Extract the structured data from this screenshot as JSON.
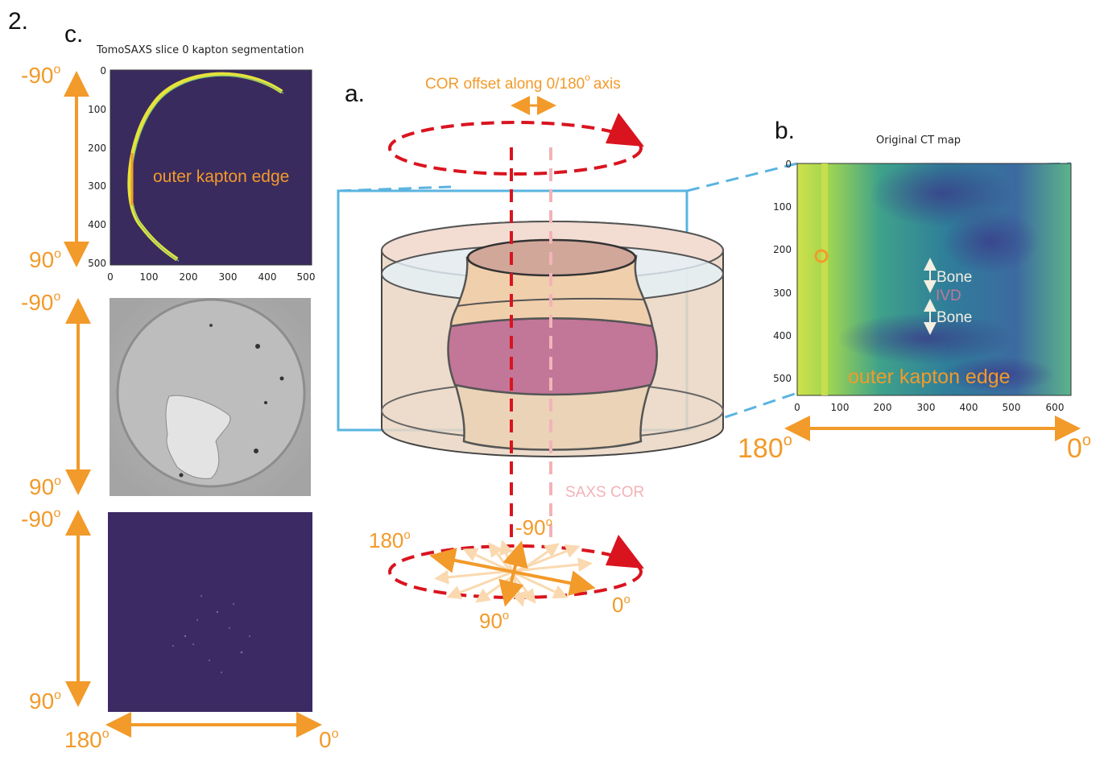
{
  "labels": {
    "figure_number": "2.",
    "panel_a": "a.",
    "panel_b": "b.",
    "panel_c": "c."
  },
  "panel_c": {
    "title": "TomoSAXS slice 0 kapton segmentation",
    "annotation": "outer kapton edge",
    "x_ticks": [
      "0",
      "100",
      "200",
      "300",
      "400",
      "500"
    ],
    "y_ticks": [
      "0",
      "100",
      "200",
      "300",
      "400",
      "500"
    ],
    "angle_top": "-90",
    "angle_bottom": "90",
    "angle_left": "180",
    "angle_right": "0",
    "degree": "o"
  },
  "panel_a": {
    "cor_offset_label": "COR offset along 0/180",
    "cor_offset_suffix": "axis",
    "saxs_cor_label": "SAXS COR",
    "angle_minus90": "-90",
    "angle_180": "180",
    "angle_90": "90",
    "angle_0": "0",
    "degree": "o"
  },
  "panel_b": {
    "title": "Original CT map",
    "x_ticks": [
      "0",
      "100",
      "200",
      "300",
      "400",
      "500",
      "600"
    ],
    "y_ticks": [
      "0",
      "100",
      "200",
      "300",
      "400",
      "500"
    ],
    "bone_top": "Bone",
    "ivd": "IVD",
    "bone_bottom": "Bone",
    "annotation": "outer kapton edge",
    "angle_left": "180",
    "angle_right": "0",
    "degree": "o"
  },
  "colors": {
    "accent_orange": "#f29a2a",
    "cor_red": "#d9141f",
    "saxs_pink": "#f2b3b8",
    "frame_blue": "#5ab4e0",
    "viridis_dark": "#3b2a64",
    "ivd_purple": "#c27698"
  }
}
